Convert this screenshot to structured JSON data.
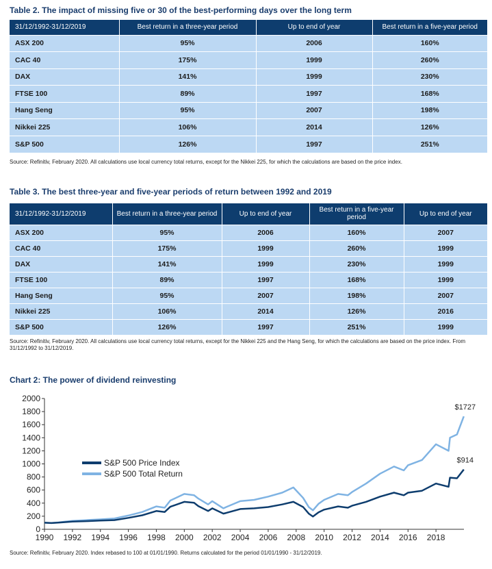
{
  "table2": {
    "title": "Table 2. The impact of missing five or 30 of the best-performing days over the long term",
    "headers": [
      "31/12/1992-31/12/2019",
      "Best return in a three-year period",
      "Up to end of year",
      "Best return in a five-year period"
    ],
    "rows": [
      [
        "ASX 200",
        "95%",
        "2006",
        "160%"
      ],
      [
        "CAC 40",
        "175%",
        "1999",
        "260%"
      ],
      [
        "DAX",
        "141%",
        "1999",
        "230%"
      ],
      [
        "FTSE 100",
        "89%",
        "1997",
        "168%"
      ],
      [
        "Hang Seng",
        "95%",
        "2007",
        "198%"
      ],
      [
        "Nikkei 225",
        "106%",
        "2014",
        "126%"
      ],
      [
        "S&P 500",
        "126%",
        "1997",
        "251%"
      ]
    ],
    "source": "Source: Refinitiv, February 2020. All calculations use local currency total returns, except for the Nikkei 225, for which the calculations are based on the price index."
  },
  "table3": {
    "title": "Table 3. The best three-year and five-year periods of return between 1992 and 2019",
    "headers": [
      "31/12/1992-31/12/2019",
      "Best return in a three-year period",
      "Up to end of year",
      "Best return in a five-year period",
      "Up to end of year"
    ],
    "rows": [
      [
        "ASX 200",
        "95%",
        "2006",
        "160%",
        "2007"
      ],
      [
        "CAC 40",
        "175%",
        "1999",
        "260%",
        "1999"
      ],
      [
        "DAX",
        "141%",
        "1999",
        "230%",
        "1999"
      ],
      [
        "FTSE 100",
        "89%",
        "1997",
        "168%",
        "1999"
      ],
      [
        "Hang Seng",
        "95%",
        "2007",
        "198%",
        "2007"
      ],
      [
        "Nikkei 225",
        "106%",
        "2014",
        "126%",
        "2016"
      ],
      [
        "S&P 500",
        "126%",
        "1997",
        "251%",
        "1999"
      ]
    ],
    "source": "Source: Refinitiv, February 2020. All calculations use local currency total returns, except for the Nikkei 225 and the Hang Seng, for which the calculations are based on the price index. From 31/12/1992 to 31/12/2019."
  },
  "chart": {
    "title": "Chart 2: The power of dividend reinvesting",
    "source": "Source: Refinitiv, February 2020. Index rebased to 100 at 01/01/1990. Returns calculated for the period 01/01/1990 - 31/12/2019."
  },
  "chart_data": {
    "type": "line",
    "title": "Chart 2: The power of dividend reinvesting",
    "xlabel": "",
    "ylabel": "",
    "xlim": [
      1990,
      2020
    ],
    "ylim": [
      0,
      2000
    ],
    "yticks": [
      0,
      200,
      400,
      600,
      800,
      1000,
      1200,
      1400,
      1600,
      1800,
      2000
    ],
    "xticks": [
      1990,
      1992,
      1994,
      1996,
      1998,
      2000,
      2002,
      2004,
      2006,
      2008,
      2010,
      2012,
      2014,
      2016,
      2018
    ],
    "grid": false,
    "legend_position": "center-left",
    "series": [
      {
        "name": "S&P 500 Price Index",
        "color": "#0e3d6e",
        "x": [
          1990,
          1990.5,
          1991,
          1991.5,
          1992,
          1993,
          1994,
          1995,
          1996,
          1997,
          1998,
          1998.6,
          1999,
          2000,
          2000.7,
          2001,
          2001.7,
          2002,
          2002.8,
          2003,
          2004,
          2005,
          2006,
          2007,
          2007.8,
          2008.5,
          2008.9,
          2009.2,
          2009.6,
          2010,
          2011,
          2011.7,
          2012,
          2013,
          2014,
          2015,
          2015.7,
          2016,
          2017,
          2018,
          2018.9,
          2019,
          2019.5,
          2019.99
        ],
        "y": [
          100,
          95,
          102,
          110,
          118,
          125,
          133,
          140,
          175,
          215,
          280,
          265,
          345,
          420,
          405,
          355,
          280,
          320,
          240,
          250,
          310,
          320,
          340,
          380,
          420,
          340,
          240,
          195,
          260,
          300,
          350,
          330,
          360,
          420,
          500,
          560,
          520,
          560,
          590,
          700,
          650,
          790,
          780,
          914
        ]
      },
      {
        "name": "S&P 500 Total Return",
        "color": "#7fb3e3",
        "x": [
          1990,
          1990.5,
          1991,
          1991.5,
          1992,
          1993,
          1994,
          1995,
          1996,
          1997,
          1998,
          1998.6,
          1999,
          2000,
          2000.7,
          2001,
          2001.7,
          2002,
          2002.8,
          2003,
          2004,
          2005,
          2006,
          2007,
          2007.8,
          2008.5,
          2008.9,
          2009.2,
          2009.6,
          2010,
          2011,
          2011.7,
          2012,
          2013,
          2014,
          2015,
          2015.7,
          2016,
          2017,
          2018,
          2018.9,
          2019,
          2019.5,
          2019.99
        ],
        "y": [
          100,
          96,
          105,
          118,
          128,
          140,
          152,
          165,
          210,
          265,
          350,
          330,
          440,
          540,
          520,
          470,
          380,
          430,
          320,
          340,
          430,
          450,
          500,
          560,
          640,
          480,
          340,
          290,
          390,
          450,
          540,
          520,
          570,
          700,
          850,
          960,
          900,
          980,
          1060,
          1300,
          1200,
          1400,
          1450,
          1727
        ]
      }
    ],
    "annotations": [
      "$1727",
      "$914"
    ]
  }
}
